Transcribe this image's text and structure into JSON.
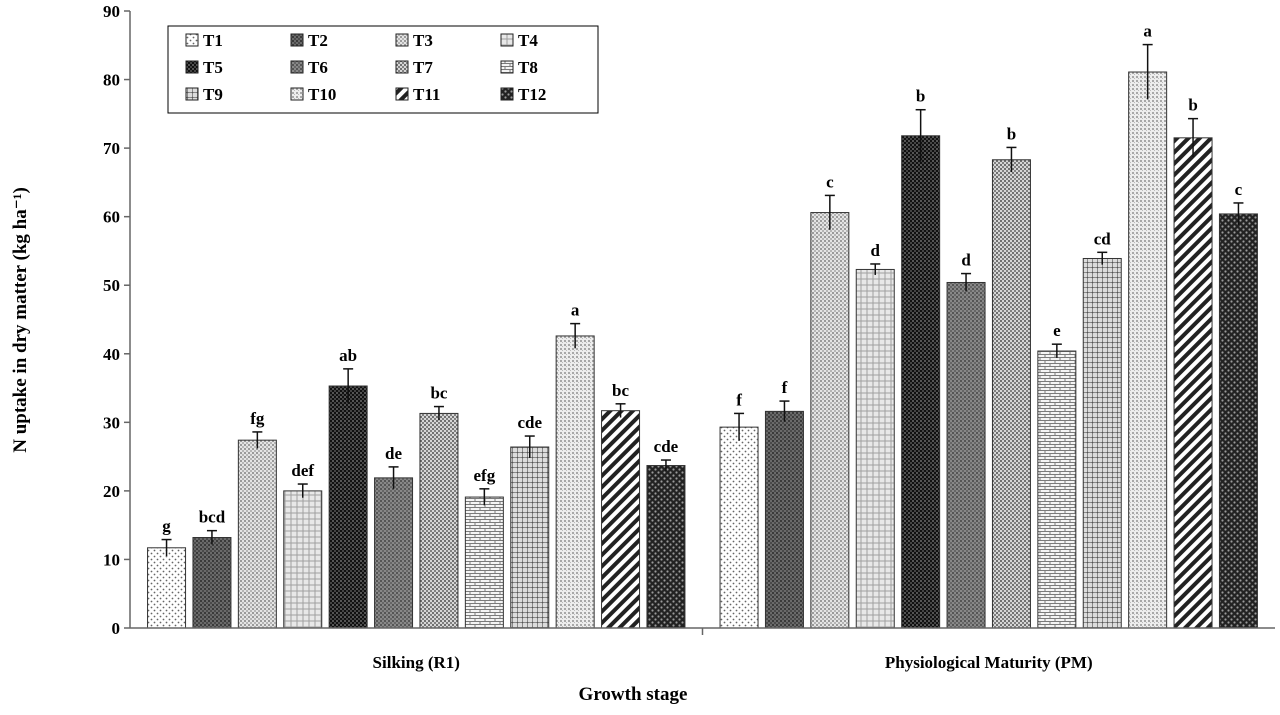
{
  "chart_data": {
    "type": "bar",
    "xlabel": "Growth stage",
    "ylabel": "N uptake in dry matter (kg ha⁻¹)",
    "ylim": [
      0,
      90
    ],
    "yticks": [
      0,
      10,
      20,
      30,
      40,
      50,
      60,
      70,
      80,
      90
    ],
    "grid": false,
    "legend_position": "top-left",
    "error_bars": true,
    "categories": [
      "Silking (R1)",
      "Physiological Maturity (PM)"
    ],
    "series": [
      {
        "name": "T1",
        "pattern": "dots",
        "values": [
          11.7,
          29.3
        ],
        "errors": [
          1.2,
          2.0
        ],
        "labels": [
          "g",
          "f"
        ]
      },
      {
        "name": "T2",
        "pattern": "dark-fine",
        "values": [
          13.2,
          31.6
        ],
        "errors": [
          1.0,
          1.5
        ],
        "labels": [
          "bcd",
          "f"
        ]
      },
      {
        "name": "T3",
        "pattern": "light-fine",
        "values": [
          27.4,
          60.6
        ],
        "errors": [
          1.2,
          2.5
        ],
        "labels": [
          "fg",
          "c"
        ]
      },
      {
        "name": "T4",
        "pattern": "light-grid",
        "values": [
          20.0,
          52.3
        ],
        "errors": [
          1.0,
          0.8
        ],
        "labels": [
          "def",
          "d"
        ]
      },
      {
        "name": "T5",
        "pattern": "dark-check",
        "values": [
          35.3,
          71.8
        ],
        "errors": [
          2.5,
          3.8
        ],
        "labels": [
          "ab",
          "b"
        ]
      },
      {
        "name": "T6",
        "pattern": "dark-medium",
        "values": [
          21.9,
          50.4
        ],
        "errors": [
          1.6,
          1.3
        ],
        "labels": [
          "de",
          "d"
        ]
      },
      {
        "name": "T7",
        "pattern": "med-check",
        "values": [
          31.3,
          68.3
        ],
        "errors": [
          1.0,
          1.8
        ],
        "labels": [
          "bc",
          "b"
        ]
      },
      {
        "name": "T8",
        "pattern": "bricks",
        "values": [
          19.1,
          40.4
        ],
        "errors": [
          1.2,
          1.0
        ],
        "labels": [
          "efg",
          "e"
        ]
      },
      {
        "name": "T9",
        "pattern": "med-grid",
        "values": [
          26.4,
          53.9
        ],
        "errors": [
          1.6,
          0.9
        ],
        "labels": [
          "cde",
          "cd"
        ]
      },
      {
        "name": "T10",
        "pattern": "light-fine2",
        "values": [
          42.6,
          81.1
        ],
        "errors": [
          1.8,
          4.0
        ],
        "labels": [
          "a",
          "a"
        ]
      },
      {
        "name": "T11",
        "pattern": "diag",
        "values": [
          31.7,
          71.5
        ],
        "errors": [
          1.0,
          2.8
        ],
        "labels": [
          "bc",
          "b"
        ]
      },
      {
        "name": "T12",
        "pattern": "dark-dots",
        "values": [
          23.7,
          60.4
        ],
        "errors": [
          0.8,
          1.6
        ],
        "labels": [
          "cde",
          "c"
        ]
      }
    ]
  }
}
